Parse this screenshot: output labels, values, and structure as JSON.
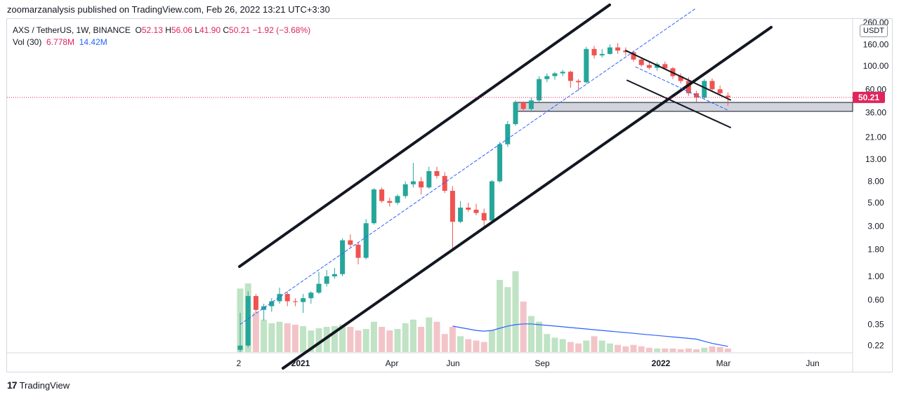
{
  "header": {
    "published": "zoomarzanalysis published on TradingView.com, Feb 26, 2022 13:21 UTC+3:30"
  },
  "legend": {
    "symbol": "AXS / TetherUS, 1W, BINANCE",
    "o_label": "O",
    "o_val": "52.13",
    "h_label": "H",
    "h_val": "56.06",
    "l_label": "L",
    "l_val": "41.90",
    "c_label": "C",
    "c_val": "50.21",
    "change": "−1.92 (−3.68%)",
    "vol_label": "Vol (30)",
    "vol_val": "6.778M",
    "vol_ma": "14.42M"
  },
  "currency": "USDT",
  "footer": {
    "brand": "TradingView"
  },
  "colors": {
    "up": "#26a69a",
    "down": "#ef5350",
    "vol_up": "#bfe3c4",
    "vol_down": "#f2c4c8",
    "ma": "#2962ff",
    "price_tag": "#e0245e"
  },
  "chart_data": {
    "type": "candlestick",
    "title": "AXS / TetherUS, 1W, BINANCE",
    "y_scale": "log",
    "y_ticks": [
      "260.00",
      "160.00",
      "100.00",
      "60.00",
      "36.00",
      "21.00",
      "13.00",
      "8.00",
      "5.00",
      "3.00",
      "1.80",
      "1.00",
      "0.60",
      "0.35",
      "0.22"
    ],
    "x_ticks": [
      "2",
      "2021",
      "Apr",
      "Jun",
      "Sep",
      "2022",
      "Mar",
      "Jun"
    ],
    "last_price": "50.21",
    "candles": [
      {
        "o": 0.2,
        "h": 0.45,
        "l": 0.19,
        "c": 0.22
      },
      {
        "o": 0.22,
        "h": 0.72,
        "l": 0.21,
        "c": 0.65
      },
      {
        "o": 0.65,
        "h": 0.68,
        "l": 0.45,
        "c": 0.48
      },
      {
        "o": 0.48,
        "h": 0.55,
        "l": 0.38,
        "c": 0.52
      },
      {
        "o": 0.52,
        "h": 0.62,
        "l": 0.46,
        "c": 0.58
      },
      {
        "o": 0.58,
        "h": 0.78,
        "l": 0.55,
        "c": 0.68
      },
      {
        "o": 0.68,
        "h": 0.72,
        "l": 0.52,
        "c": 0.58
      },
      {
        "o": 0.58,
        "h": 0.62,
        "l": 0.52,
        "c": 0.57
      },
      {
        "o": 0.57,
        "h": 0.68,
        "l": 0.45,
        "c": 0.62
      },
      {
        "o": 0.62,
        "h": 0.72,
        "l": 0.55,
        "c": 0.7
      },
      {
        "o": 0.7,
        "h": 1.1,
        "l": 0.68,
        "c": 0.85
      },
      {
        "o": 0.85,
        "h": 1.15,
        "l": 0.8,
        "c": 1.0
      },
      {
        "o": 1.0,
        "h": 1.2,
        "l": 0.95,
        "c": 1.05
      },
      {
        "o": 1.05,
        "h": 2.3,
        "l": 1.0,
        "c": 2.2
      },
      {
        "o": 2.2,
        "h": 2.5,
        "l": 1.9,
        "c": 2.0
      },
      {
        "o": 2.0,
        "h": 2.1,
        "l": 1.3,
        "c": 1.5
      },
      {
        "o": 1.5,
        "h": 3.5,
        "l": 1.45,
        "c": 3.2
      },
      {
        "o": 3.2,
        "h": 6.9,
        "l": 3.1,
        "c": 6.7
      },
      {
        "o": 6.7,
        "h": 7.0,
        "l": 5.0,
        "c": 5.2
      },
      {
        "o": 5.2,
        "h": 5.6,
        "l": 4.6,
        "c": 5.0
      },
      {
        "o": 5.0,
        "h": 6.0,
        "l": 4.8,
        "c": 5.8
      },
      {
        "o": 5.8,
        "h": 8.0,
        "l": 5.5,
        "c": 7.5
      },
      {
        "o": 7.5,
        "h": 12.0,
        "l": 7.0,
        "c": 8.0
      },
      {
        "o": 8.0,
        "h": 8.8,
        "l": 6.0,
        "c": 7.0
      },
      {
        "o": 7.0,
        "h": 11.0,
        "l": 6.8,
        "c": 10.0
      },
      {
        "o": 10.0,
        "h": 11.0,
        "l": 8.5,
        "c": 9.0
      },
      {
        "o": 9.0,
        "h": 9.8,
        "l": 6.2,
        "c": 6.5
      },
      {
        "o": 6.5,
        "h": 7.2,
        "l": 1.8,
        "c": 3.3
      },
      {
        "o": 3.3,
        "h": 5.2,
        "l": 3.2,
        "c": 4.5
      },
      {
        "o": 4.5,
        "h": 5.0,
        "l": 4.1,
        "c": 4.3
      },
      {
        "o": 4.3,
        "h": 4.9,
        "l": 3.8,
        "c": 4.0
      },
      {
        "o": 4.0,
        "h": 4.4,
        "l": 2.8,
        "c": 3.4
      },
      {
        "o": 3.4,
        "h": 8.2,
        "l": 3.3,
        "c": 8.0
      },
      {
        "o": 8.0,
        "h": 19.0,
        "l": 7.8,
        "c": 18.0
      },
      {
        "o": 18.0,
        "h": 30.0,
        "l": 17.0,
        "c": 28.0
      },
      {
        "o": 28.0,
        "h": 47.0,
        "l": 27.0,
        "c": 45.0
      },
      {
        "o": 45.0,
        "h": 46.0,
        "l": 37.0,
        "c": 39.0
      },
      {
        "o": 39.0,
        "h": 50.0,
        "l": 37.0,
        "c": 47.0
      },
      {
        "o": 47.0,
        "h": 80.0,
        "l": 45.0,
        "c": 75.0
      },
      {
        "o": 75.0,
        "h": 85.0,
        "l": 70.0,
        "c": 80.0
      },
      {
        "o": 80.0,
        "h": 88.0,
        "l": 74.0,
        "c": 85.0
      },
      {
        "o": 85.0,
        "h": 92.0,
        "l": 80.0,
        "c": 88.0
      },
      {
        "o": 88.0,
        "h": 90.0,
        "l": 62.0,
        "c": 72.0
      },
      {
        "o": 72.0,
        "h": 75.0,
        "l": 58.0,
        "c": 70.0
      },
      {
        "o": 70.0,
        "h": 152.0,
        "l": 68.0,
        "c": 145.0
      },
      {
        "o": 145.0,
        "h": 155.0,
        "l": 118.0,
        "c": 126.0
      },
      {
        "o": 126.0,
        "h": 145.0,
        "l": 120.0,
        "c": 130.0
      },
      {
        "o": 130.0,
        "h": 160.0,
        "l": 128.0,
        "c": 150.0
      },
      {
        "o": 150.0,
        "h": 165.0,
        "l": 130.0,
        "c": 140.0
      },
      {
        "o": 140.0,
        "h": 150.0,
        "l": 125.0,
        "c": 135.0
      },
      {
        "o": 135.0,
        "h": 140.0,
        "l": 110.0,
        "c": 115.0
      },
      {
        "o": 115.0,
        "h": 118.0,
        "l": 98.0,
        "c": 102.0
      },
      {
        "o": 102.0,
        "h": 110.0,
        "l": 92.0,
        "c": 96.0
      },
      {
        "o": 96.0,
        "h": 108.0,
        "l": 90.0,
        "c": 104.0
      },
      {
        "o": 104.0,
        "h": 110.0,
        "l": 92.0,
        "c": 95.0
      },
      {
        "o": 95.0,
        "h": 98.0,
        "l": 75.0,
        "c": 80.0
      },
      {
        "o": 80.0,
        "h": 85.0,
        "l": 68.0,
        "c": 72.0
      },
      {
        "o": 72.0,
        "h": 78.0,
        "l": 52.0,
        "c": 55.0
      },
      {
        "o": 55.0,
        "h": 58.0,
        "l": 45.0,
        "c": 50.0
      },
      {
        "o": 50.0,
        "h": 75.0,
        "l": 48.0,
        "c": 72.0
      },
      {
        "o": 72.0,
        "h": 76.0,
        "l": 58.0,
        "c": 60.0
      },
      {
        "o": 60.0,
        "h": 65.0,
        "l": 52.0,
        "c": 55.0
      },
      {
        "o": 52.13,
        "h": 56.06,
        "l": 41.9,
        "c": 50.21
      }
    ],
    "volumes": [
      0.88,
      0.95,
      0.55,
      0.45,
      0.4,
      0.42,
      0.4,
      0.38,
      0.36,
      0.3,
      0.33,
      0.35,
      0.36,
      0.38,
      0.35,
      0.3,
      0.32,
      0.42,
      0.35,
      0.3,
      0.32,
      0.4,
      0.45,
      0.35,
      0.48,
      0.42,
      0.25,
      0.35,
      0.22,
      0.18,
      0.16,
      0.14,
      0.3,
      1.0,
      0.9,
      1.12,
      0.7,
      0.5,
      0.42,
      0.25,
      0.2,
      0.18,
      0.14,
      0.12,
      0.16,
      0.22,
      0.16,
      0.12,
      0.1,
      0.08,
      0.1,
      0.08,
      0.06,
      0.05,
      0.05,
      0.05,
      0.04,
      0.05,
      0.04,
      0.06,
      0.08,
      0.07,
      0.05
    ],
    "vol_ma": [
      null,
      null,
      null,
      null,
      null,
      null,
      null,
      null,
      null,
      null,
      null,
      null,
      null,
      null,
      null,
      null,
      null,
      null,
      null,
      null,
      null,
      null,
      null,
      null,
      null,
      null,
      null,
      0.36,
      0.34,
      0.32,
      0.3,
      0.29,
      0.3,
      0.33,
      0.36,
      0.38,
      0.39,
      0.39,
      0.38,
      0.37,
      0.36,
      0.35,
      0.34,
      0.33,
      0.32,
      0.31,
      0.3,
      0.29,
      0.28,
      0.27,
      0.26,
      0.25,
      0.24,
      0.23,
      0.22,
      0.21,
      0.2,
      0.19,
      0.18,
      0.15,
      0.12,
      0.1,
      0.08
    ]
  }
}
